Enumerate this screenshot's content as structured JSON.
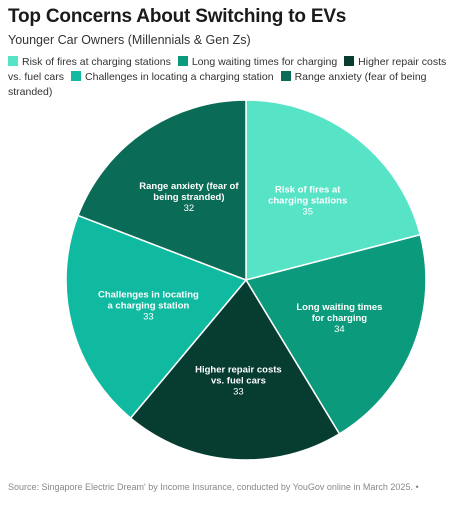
{
  "chart_data": {
    "type": "pie",
    "title": "Top Concerns About Switching to EVs",
    "subtitle": "Younger Car Owners (Millennials & Gen Zs)",
    "categories": [
      "Risk of fires at charging stations",
      "Long waiting times for charging",
      "Higher repair costs vs. fuel cars",
      "Challenges in locating a charging station",
      "Range anxiety (fear of being stranded)"
    ],
    "slice_labels": [
      [
        "Risk of fires at",
        "charging stations"
      ],
      [
        "Long waiting times",
        "for charging"
      ],
      [
        "Higher repair costs",
        "vs. fuel cars"
      ],
      [
        "Challenges in locating",
        "a charging station"
      ],
      [
        "Range anxiety (fear of",
        "being stranded)"
      ]
    ],
    "values": [
      35,
      34,
      33,
      33,
      32
    ],
    "colors": [
      "#56e3c6",
      "#0c9a7c",
      "#073d30",
      "#10baa0",
      "#0a6b56"
    ],
    "legend_placement": "top",
    "source": "Source: Singapore Electric Dream' by Income Insurance, conducted by YouGov online in March 2025. •"
  }
}
